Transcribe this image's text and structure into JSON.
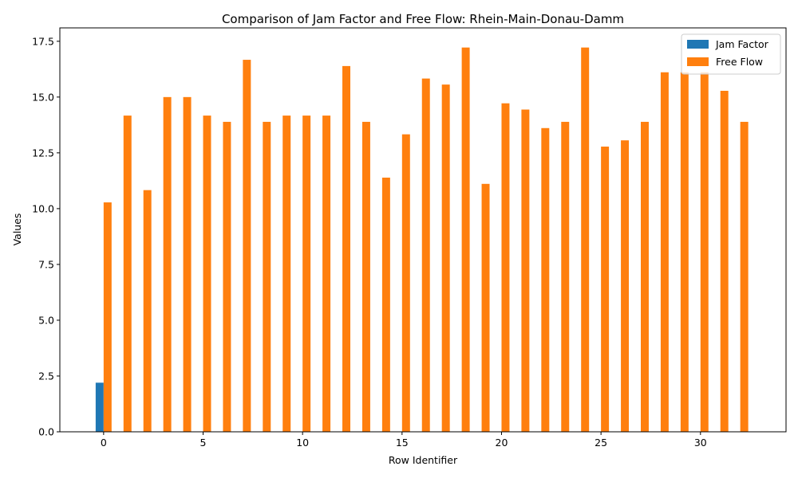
{
  "chart_data": {
    "type": "bar",
    "title": "Comparison of Jam Factor and Free Flow: Rhein-Main-Donau-Damm",
    "xlabel": "Row Identifier",
    "ylabel": "Values",
    "x": [
      0,
      1,
      2,
      3,
      4,
      5,
      6,
      7,
      8,
      9,
      10,
      11,
      12,
      13,
      14,
      15,
      16,
      17,
      18,
      19,
      20,
      21,
      22,
      23,
      24,
      25,
      26,
      27,
      28,
      29,
      30,
      31,
      32
    ],
    "xticks": [
      0,
      5,
      10,
      15,
      20,
      25,
      30
    ],
    "xlim": [
      -2.2,
      34.3
    ],
    "yticks": [
      0.0,
      2.5,
      5.0,
      7.5,
      10.0,
      12.5,
      15.0,
      17.5
    ],
    "ylim": [
      0,
      18.1
    ],
    "legend_position": "top-right",
    "series": [
      {
        "name": "Jam Factor",
        "color": "#1f77b4",
        "values": [
          2.2,
          0,
          0,
          0,
          0,
          0,
          0,
          0,
          0,
          0,
          0,
          0,
          0,
          0,
          0,
          0,
          0,
          0,
          0,
          0,
          0,
          0,
          0,
          0,
          0,
          0,
          0,
          0,
          0,
          0,
          0,
          0,
          0
        ]
      },
      {
        "name": "Free Flow",
        "color": "#ff7f0e",
        "values": [
          10.28,
          14.17,
          10.83,
          15.0,
          15.0,
          14.17,
          13.89,
          16.67,
          13.89,
          14.17,
          14.17,
          14.17,
          16.39,
          13.89,
          11.39,
          13.33,
          15.83,
          15.56,
          17.22,
          11.11,
          14.72,
          14.44,
          13.61,
          13.89,
          17.22,
          12.78,
          13.06,
          13.89,
          16.11,
          16.11,
          16.11,
          15.28,
          13.89
        ]
      }
    ]
  }
}
